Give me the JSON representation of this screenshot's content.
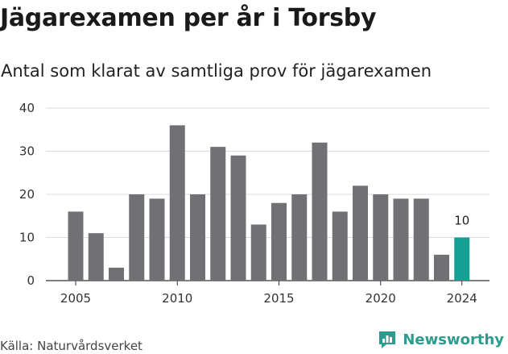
{
  "title": "Jägarexamen per år i Torsby",
  "subtitle": "Antal som klarat av samtliga prov för jägarexamen",
  "source": "Källa: Naturvårdsverket",
  "brand": {
    "name": "Newsworthy",
    "icon": "newsworthy-logo-icon",
    "color": "#2a9d8f"
  },
  "colors": {
    "bar": "#717074",
    "highlight": "#14a094",
    "grid": "#dcdcdc",
    "axis": "#333333"
  },
  "chart_data": {
    "type": "bar",
    "x": [
      2005,
      2006,
      2007,
      2008,
      2009,
      2010,
      2011,
      2012,
      2013,
      2014,
      2015,
      2016,
      2017,
      2018,
      2019,
      2020,
      2021,
      2022,
      2023,
      2024
    ],
    "values": [
      16,
      11,
      3,
      20,
      19,
      36,
      20,
      31,
      29,
      13,
      18,
      20,
      32,
      16,
      22,
      20,
      19,
      19,
      6,
      10
    ],
    "highlight_index": 19,
    "data_labels": [
      {
        "index": 19,
        "text": "10"
      }
    ],
    "x_ticks": [
      "2005",
      "2010",
      "2015",
      "2020",
      "2024"
    ],
    "y_ticks": [
      "0",
      "10",
      "20",
      "30",
      "40"
    ],
    "ylim": [
      0,
      40
    ],
    "grid": true,
    "legend": "none",
    "title": "Jägarexamen per år i Torsby",
    "subtitle": "Antal som klarat av samtliga prov för jägarexamen",
    "xlabel": "",
    "ylabel": ""
  }
}
